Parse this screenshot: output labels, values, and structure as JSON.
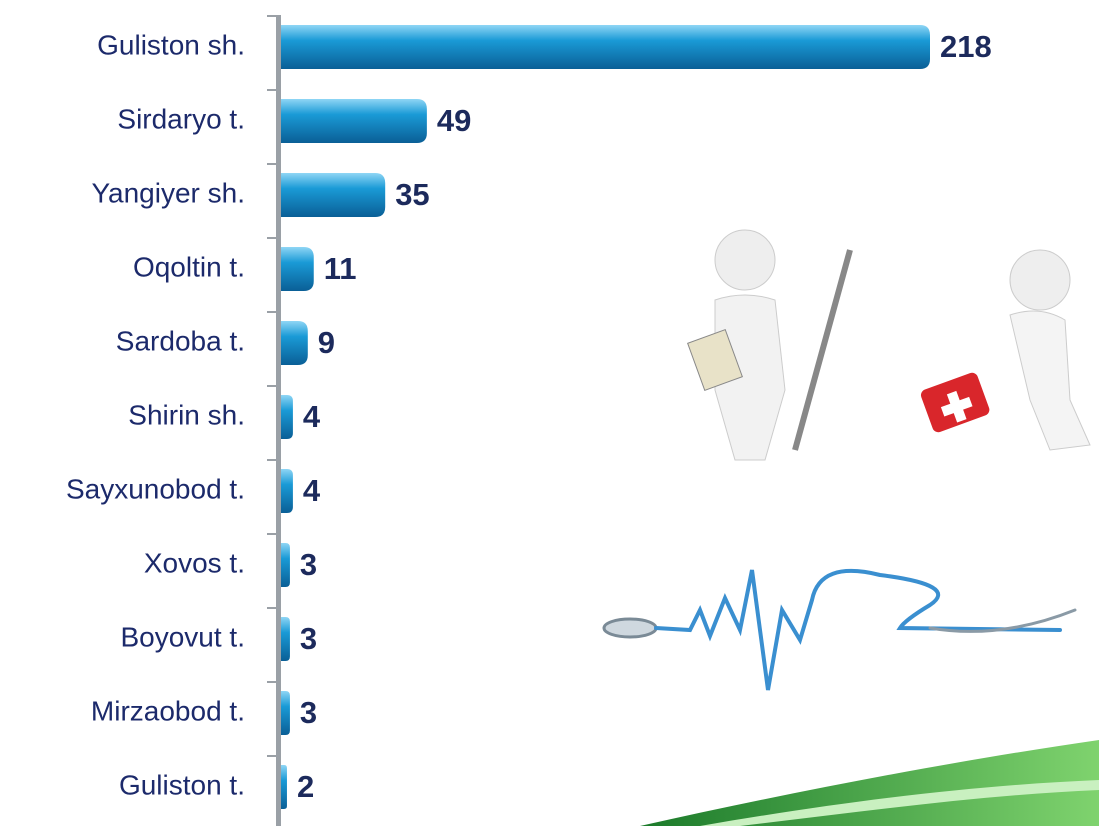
{
  "chart_data": {
    "type": "bar",
    "orientation": "horizontal",
    "categories": [
      "Guliston sh.",
      "Sirdaryo t.",
      "Yangiyer sh.",
      "Oqoltin t.",
      "Sardoba t.",
      "Shirin sh.",
      "Sayxunobod t.",
      "Xovos t.",
      "Boyovut t.",
      "Mirzaobod t.",
      "Guliston t."
    ],
    "values": [
      218,
      49,
      35,
      11,
      9,
      4,
      4,
      3,
      3,
      3,
      2
    ],
    "color": "#1a9ad6"
  }
}
